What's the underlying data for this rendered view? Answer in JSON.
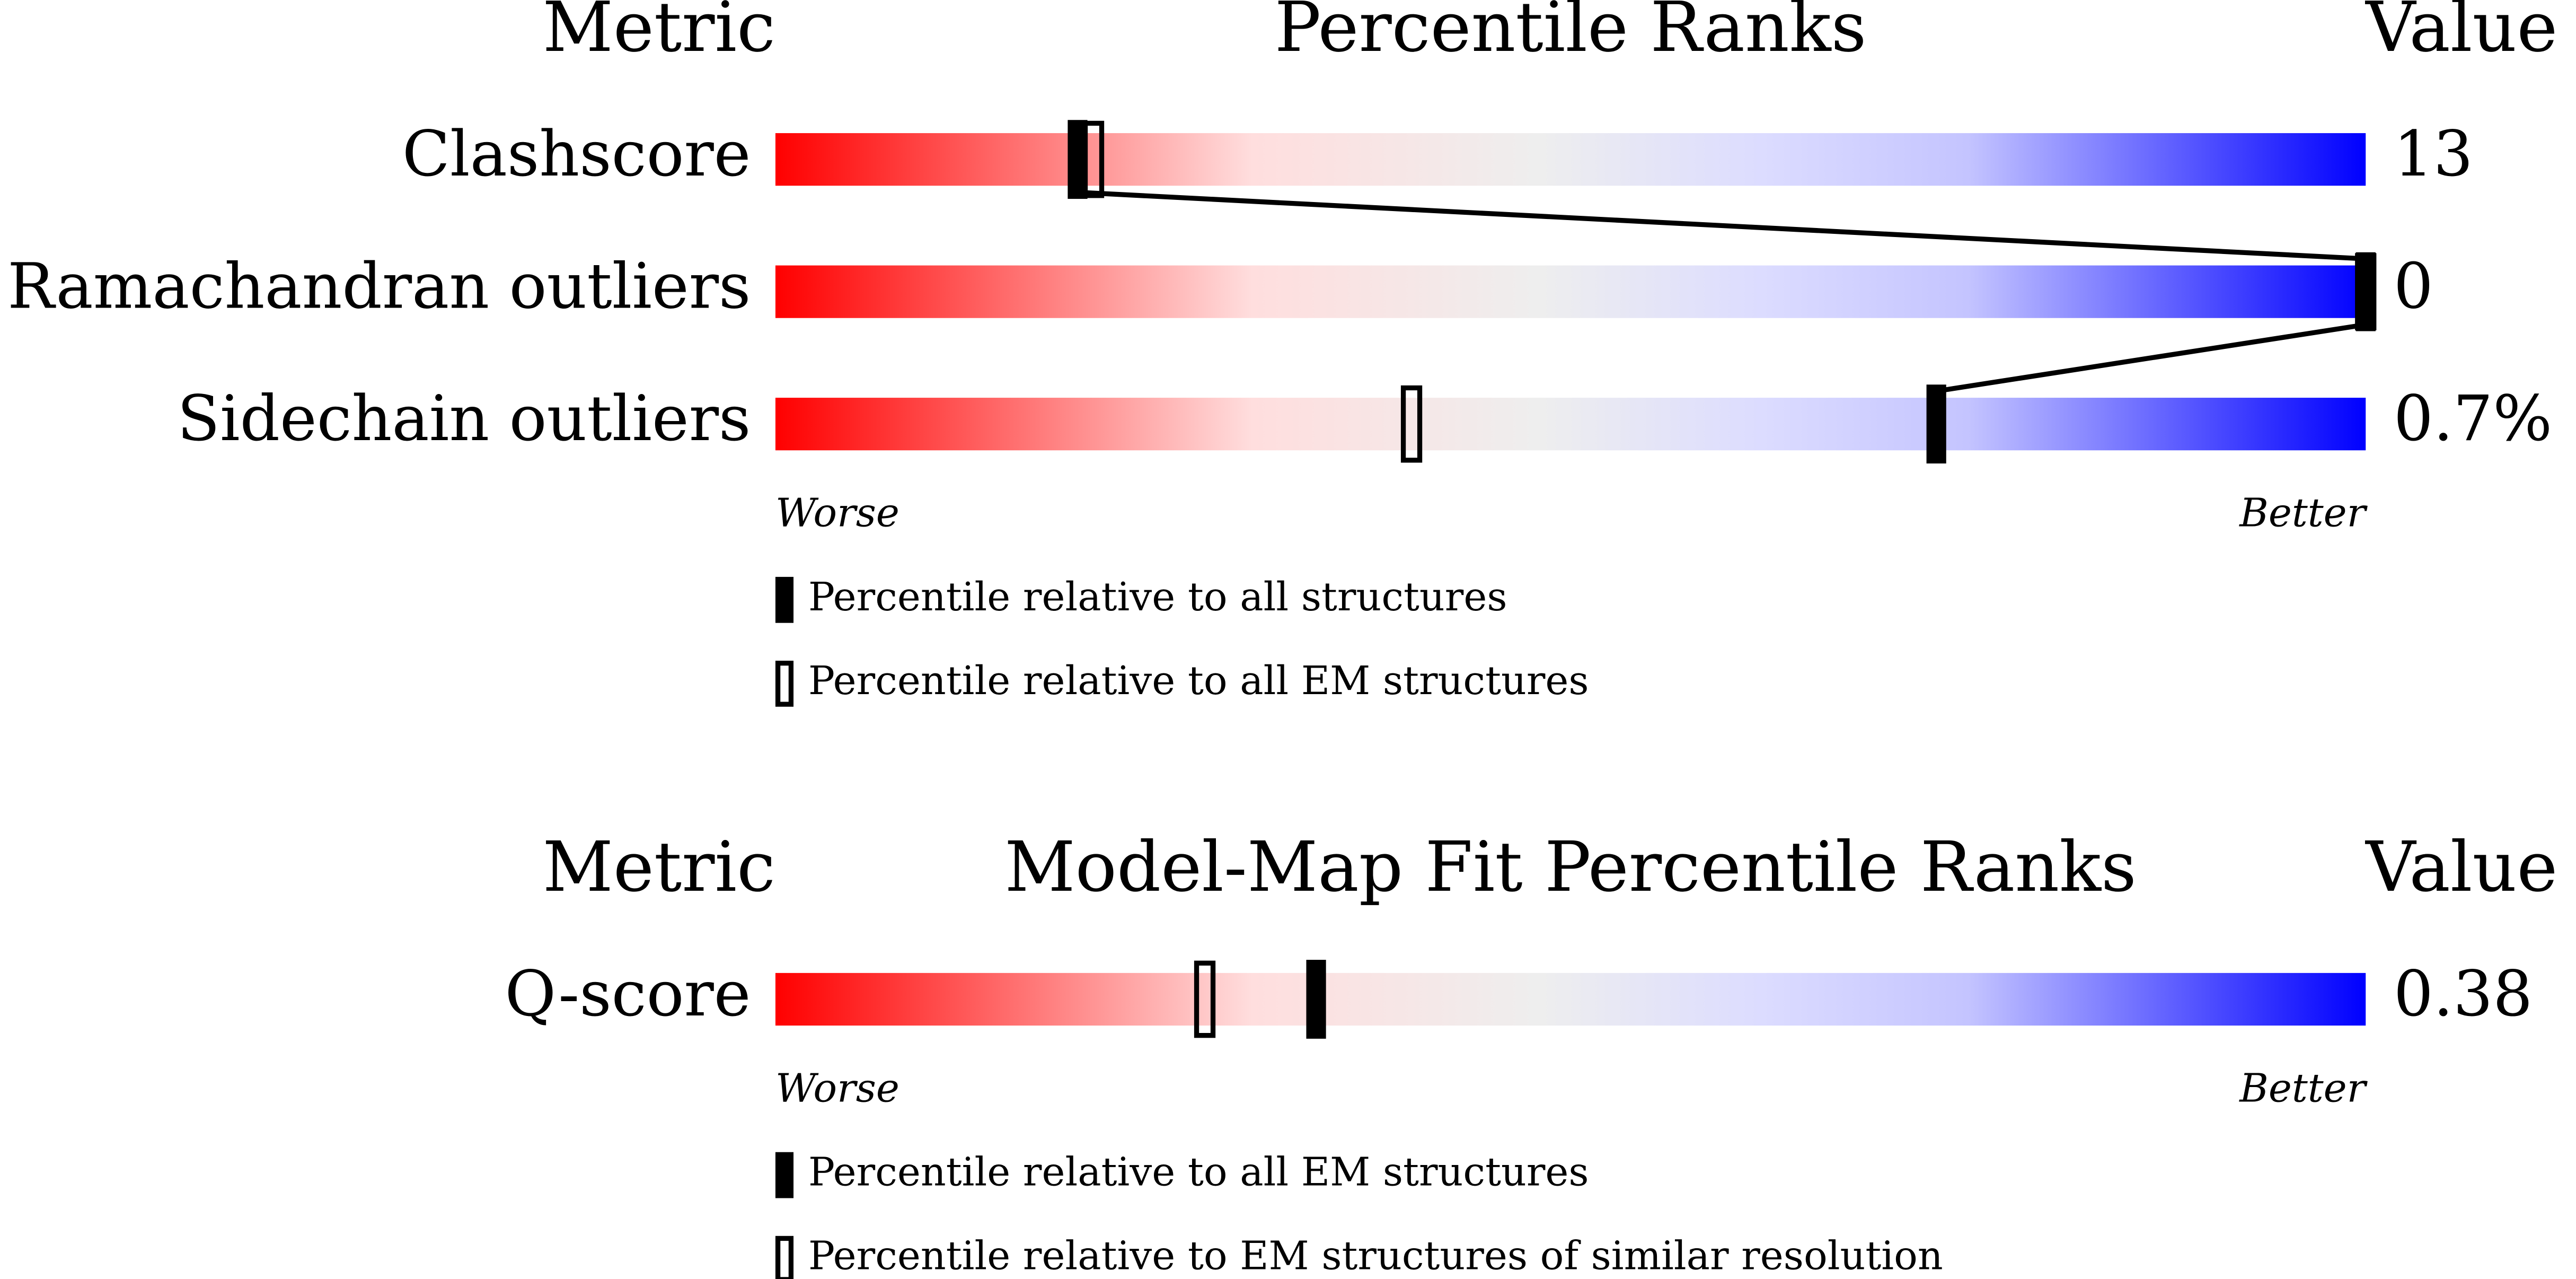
{
  "chart_data": [
    {
      "type": "percentile",
      "header": {
        "metric": "Metric",
        "title": "Percentile Ranks",
        "value": "Value"
      },
      "categories": [
        "Clashscore",
        "Ramachandran outliers",
        "Sidechain outliers"
      ],
      "values": [
        13,
        0,
        0.7
      ],
      "value_labels": [
        "13",
        "0",
        "0.7%"
      ],
      "xlim": [
        0,
        100
      ],
      "x_end_labels": [
        "Worse",
        "Better"
      ],
      "series": [
        {
          "name": "Percentile relative to all structures",
          "style": "filled",
          "color": "#000000",
          "values": [
            19,
            100,
            73
          ]
        },
        {
          "name": "Percentile relative to all EM structures",
          "style": "open",
          "color": "#000000",
          "values": [
            20,
            100,
            40
          ]
        }
      ]
    },
    {
      "type": "percentile",
      "header": {
        "metric": "Metric",
        "title": "Model-Map Fit Percentile Ranks",
        "value": "Value"
      },
      "categories": [
        "Q-score"
      ],
      "values": [
        0.38
      ],
      "value_labels": [
        "0.38"
      ],
      "xlim": [
        0,
        100
      ],
      "x_end_labels": [
        "Worse",
        "Better"
      ],
      "series": [
        {
          "name": "Percentile relative to all EM structures",
          "style": "filled",
          "color": "#000000",
          "values": [
            34
          ]
        },
        {
          "name": "Percentile relative to EM structures of similar resolution",
          "style": "open",
          "color": "#000000",
          "values": [
            27
          ]
        }
      ]
    }
  ]
}
